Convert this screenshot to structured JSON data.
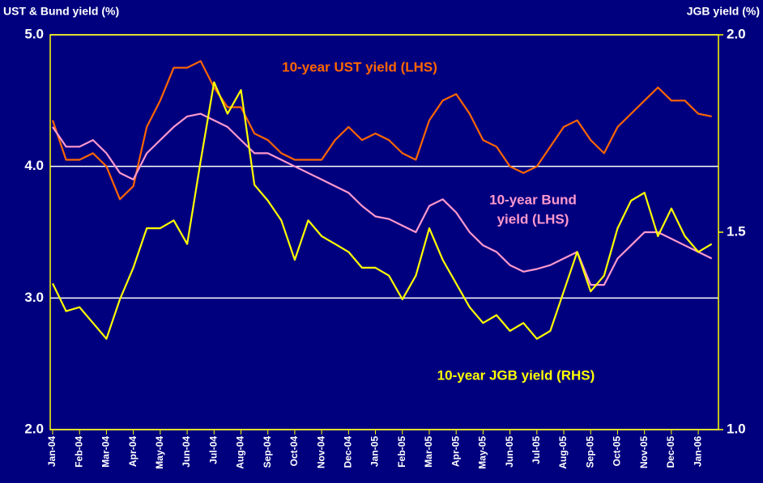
{
  "chart_data": {
    "type": "line",
    "y_label": "UST & Bund yield (%)",
    "y2_label": "JGB yield (%)",
    "annotations": [
      {
        "lines": [
          "10-year UST yield (LHS)"
        ],
        "color": "#ff6600"
      },
      {
        "lines": [
          "10-year Bund",
          "yield (LHS)"
        ],
        "color": "#ff99cc"
      },
      {
        "lines": [
          "10-year JGB yield (RHS)"
        ],
        "color": "#ffff00"
      }
    ],
    "categories": [
      "Jan-04",
      null,
      "Feb-04",
      null,
      "Mar-04",
      null,
      "Apr-04",
      null,
      "May-04",
      null,
      "Jun-04",
      null,
      "Jul-04",
      null,
      "Aug-04",
      null,
      "Sep-04",
      null,
      "Oct-04",
      null,
      "Nov-04",
      null,
      "Dec-04",
      null,
      "Jan-05",
      null,
      "Feb-05",
      null,
      "Mar-05",
      null,
      "Apr-05",
      null,
      "May-05",
      null,
      "Jun-05",
      null,
      "Jul-05",
      null,
      "Aug-05",
      null,
      "Sep-05",
      null,
      "Oct-05",
      null,
      "Nov-05",
      null,
      "Dec-05",
      null,
      "Jan-06",
      null
    ],
    "series": [
      {
        "name": "10-year UST yield (LHS)",
        "color": "#ff6600",
        "values": [
          4.35,
          4.05,
          4.05,
          4.1,
          4.0,
          3.75,
          3.85,
          4.3,
          4.5,
          4.75,
          4.75,
          4.8,
          4.6,
          4.45,
          4.45,
          4.25,
          4.2,
          4.1,
          4.05,
          4.05,
          4.05,
          4.2,
          4.3,
          4.2,
          4.25,
          4.2,
          4.1,
          4.05,
          4.35,
          4.5,
          4.55,
          4.4,
          4.2,
          4.15,
          4.0,
          3.95,
          4.0,
          4.15,
          4.3,
          4.35,
          4.2,
          4.1,
          4.3,
          4.4,
          4.5,
          4.6,
          4.5,
          4.5,
          4.4,
          4.38
        ]
      },
      {
        "name": "10-year Bund yield (LHS)",
        "color": "#ff99cc",
        "values": [
          4.3,
          4.15,
          4.15,
          4.2,
          4.1,
          3.95,
          3.9,
          4.1,
          4.2,
          4.3,
          4.38,
          4.4,
          4.35,
          4.3,
          4.2,
          4.1,
          4.1,
          4.05,
          4.0,
          3.95,
          3.9,
          3.85,
          3.8,
          3.7,
          3.62,
          3.6,
          3.55,
          3.5,
          3.7,
          3.75,
          3.65,
          3.5,
          3.4,
          3.35,
          3.25,
          3.2,
          3.22,
          3.25,
          3.3,
          3.35,
          3.1,
          3.1,
          3.3,
          3.4,
          3.5,
          3.5,
          3.45,
          3.4,
          3.35,
          3.3
        ]
      },
      {
        "name": "10-year JGB yield (RHS)",
        "color": "#ffff00",
        "axis": "y2",
        "values": [
          1.37,
          1.3,
          1.31,
          1.27,
          1.23,
          1.33,
          1.41,
          1.51,
          1.51,
          1.53,
          1.47,
          1.68,
          1.88,
          1.8,
          1.86,
          1.62,
          1.58,
          1.53,
          1.43,
          1.53,
          1.49,
          1.47,
          1.45,
          1.41,
          1.41,
          1.39,
          1.33,
          1.39,
          1.51,
          1.43,
          1.37,
          1.31,
          1.27,
          1.29,
          1.25,
          1.27,
          1.23,
          1.25,
          1.35,
          1.45,
          1.35,
          1.39,
          1.51,
          1.58,
          1.6,
          1.49,
          1.56,
          1.49,
          1.45,
          1.47
        ]
      }
    ],
    "ylim": [
      2.0,
      5.0
    ],
    "yticks": [
      {
        "value": 2,
        "label": "2.0"
      },
      {
        "value": 3,
        "label": "3.0"
      },
      {
        "value": 4,
        "label": "4.0"
      },
      {
        "value": 5,
        "label": "5.0"
      }
    ],
    "y2lim": [
      1.0,
      2.0
    ],
    "y2ticks": [
      {
        "value": 1,
        "label": "1.0"
      },
      1.5,
      {
        "value": 2,
        "label": "2.0"
      }
    ],
    "grid": true
  }
}
